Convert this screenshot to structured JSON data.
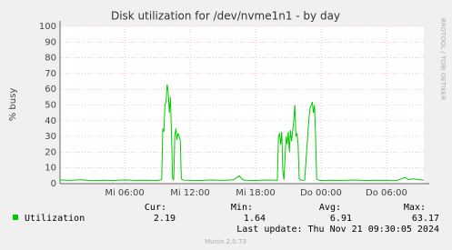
{
  "chart_data": {
    "type": "line",
    "title": "Disk utilization for /dev/nvme1n1 - by day",
    "y_label": "% busy",
    "side_note": "RRDTOOL / TOBI OETIKER",
    "footer": "Munin 2.0.73",
    "last_update": "Last update: Thu Nov 21 09:30:05 2024",
    "x": [
      0.1,
      1,
      2,
      3,
      4,
      5,
      6,
      7,
      8,
      9,
      9.4,
      9.5,
      9.6,
      9.7,
      9.8,
      9.9,
      10.0,
      10.1,
      10.2,
      10.3,
      10.4,
      10.5,
      10.6,
      10.7,
      10.8,
      10.9,
      11.0,
      11.1,
      11.2,
      11.4,
      12,
      13,
      14,
      15,
      16,
      16.5,
      16.8,
      17,
      18,
      19,
      20,
      20.1,
      20.2,
      20.3,
      20.4,
      20.5,
      20.6,
      20.8,
      20.9,
      21.0,
      21.1,
      21.2,
      21.3,
      21.5,
      21.6,
      21.7,
      21.8,
      21.9,
      22.0,
      22.2,
      22.5,
      22.9,
      23.0,
      23.1,
      23.2,
      23.3,
      23.4,
      23.5,
      23.6,
      23.8,
      24,
      25,
      26,
      27,
      28,
      29,
      30,
      31,
      31.7,
      32,
      32.5,
      33,
      33.4
    ],
    "series": [
      {
        "name": "Utilization",
        "color": "#00cc00",
        "values": [
          2.3,
          2.1,
          2.4,
          1.9,
          2.2,
          2.0,
          2.3,
          2.1,
          2.2,
          2.0,
          2.5,
          35,
          33,
          50,
          52,
          63,
          58,
          45,
          55,
          30,
          3,
          2.5,
          30,
          35,
          28,
          32,
          30,
          28,
          3,
          2.2,
          2.1,
          2.0,
          2.3,
          2.1,
          2.4,
          5,
          2.6,
          2.2,
          2.0,
          2.3,
          2.1,
          30,
          32,
          25,
          33,
          8,
          2.5,
          30,
          25,
          33,
          20,
          34,
          27,
          40,
          50,
          30,
          32,
          25,
          3,
          2.1,
          2.2,
          42,
          48,
          50,
          52,
          45,
          50,
          30,
          3,
          2.1,
          2.0,
          2.2,
          2.1,
          2.3,
          2.0,
          2.2,
          2.1,
          2.1,
          4,
          2.6,
          3,
          2.5,
          2.2
        ]
      }
    ],
    "xlim": [
      0.08,
      33.42
    ],
    "xticks": [
      {
        "value": 6,
        "label": "Mi 06:00"
      },
      {
        "value": 12,
        "label": "Mi 12:00"
      },
      {
        "value": 18,
        "label": "Mi 18:00"
      },
      {
        "value": 24,
        "label": "Do 00:00"
      },
      {
        "value": 30,
        "label": "Do 06:00"
      }
    ],
    "ylim": [
      0,
      100
    ],
    "yticks": [
      0,
      10,
      20,
      30,
      40,
      50,
      60,
      70,
      80,
      90,
      100
    ],
    "grid": true,
    "stats": {
      "labels": [
        "Cur:",
        "Min:",
        "Avg:",
        "Max:"
      ],
      "values": [
        2.19,
        1.64,
        6.91,
        63.17
      ]
    }
  }
}
